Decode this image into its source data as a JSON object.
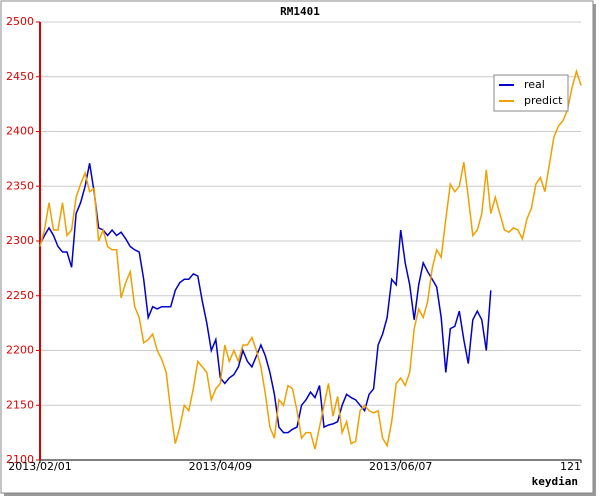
{
  "chart_data": {
    "type": "line",
    "title": "RM1401",
    "x_label": "keydian",
    "x": [
      1,
      2,
      3,
      4,
      5,
      6,
      7,
      8,
      9,
      10,
      11,
      12,
      13,
      14,
      15,
      16,
      17,
      18,
      19,
      20,
      21,
      22,
      23,
      24,
      25,
      26,
      27,
      28,
      29,
      30,
      31,
      32,
      33,
      34,
      35,
      36,
      37,
      38,
      39,
      40,
      41,
      42,
      43,
      44,
      45,
      46,
      47,
      48,
      49,
      50,
      51,
      52,
      53,
      54,
      55,
      56,
      57,
      58,
      59,
      60,
      61,
      62,
      63,
      64,
      65,
      66,
      67,
      68,
      69,
      70,
      71,
      72,
      73,
      74,
      75,
      76,
      77,
      78,
      79,
      80,
      81,
      82,
      83,
      84,
      85,
      86,
      87,
      88,
      89,
      90,
      91,
      92,
      93,
      94,
      95,
      96,
      97,
      98,
      99,
      100,
      101,
      102,
      103,
      104,
      105,
      106,
      107,
      108,
      109,
      110,
      111,
      112,
      113,
      114,
      115,
      116,
      117,
      118,
      119,
      120,
      121
    ],
    "series": [
      {
        "name": "real",
        "color": "#0000cc",
        "values": [
          2297,
          2305,
          2312,
          2305,
          2295,
          2290,
          2290,
          2276,
          2325,
          2335,
          2350,
          2371,
          2345,
          2312,
          2310,
          2305,
          2310,
          2305,
          2308,
          2302,
          2295,
          2292,
          2290,
          2265,
          2230,
          2240,
          2238,
          2240,
          2240,
          2240,
          2255,
          2262,
          2265,
          2265,
          2270,
          2268,
          2245,
          2225,
          2200,
          2210,
          2175,
          2170,
          2175,
          2178,
          2185,
          2200,
          2190,
          2185,
          2195,
          2205,
          2195,
          2180,
          2160,
          2130,
          2125,
          2125,
          2128,
          2130,
          2150,
          2155,
          2162,
          2157,
          2168,
          2130,
          2132,
          2133,
          2135,
          2150,
          2160,
          2157,
          2155,
          2150,
          2145,
          2160,
          2165,
          2205,
          2215,
          2230,
          2265,
          2260,
          2310,
          2280,
          2260,
          2228,
          2260,
          2280,
          2272,
          2265,
          2258,
          2230,
          2180,
          2220,
          2222,
          2236,
          2210,
          2188,
          2228,
          2236,
          2228,
          2200,
          2255,
          null,
          null,
          null,
          null,
          null,
          null,
          null,
          null,
          null,
          null,
          null,
          null,
          null,
          null,
          null,
          null,
          null,
          null,
          null,
          null
        ]
      },
      {
        "name": "predict",
        "color": "#f0a000",
        "values": [
          2295,
          2310,
          2335,
          2310,
          2310,
          2335,
          2305,
          2310,
          2340,
          2352,
          2362,
          2345,
          2348,
          2300,
          2310,
          2295,
          2292,
          2292,
          2248,
          2262,
          2272,
          2240,
          2230,
          2207,
          2210,
          2215,
          2200,
          2192,
          2180,
          2145,
          2115,
          2130,
          2150,
          2145,
          2165,
          2190,
          2185,
          2180,
          2155,
          2165,
          2170,
          2205,
          2190,
          2200,
          2190,
          2205,
          2205,
          2212,
          2200,
          2185,
          2160,
          2130,
          2120,
          2155,
          2150,
          2168,
          2165,
          2145,
          2120,
          2125,
          2125,
          2110,
          2130,
          2150,
          2170,
          2140,
          2158,
          2125,
          2135,
          2115,
          2117,
          2145,
          2150,
          2145,
          2143,
          2145,
          2120,
          2113,
          2135,
          2170,
          2175,
          2168,
          2180,
          2220,
          2238,
          2230,
          2245,
          2275,
          2292,
          2285,
          2320,
          2352,
          2345,
          2350,
          2372,
          2340,
          2305,
          2310,
          2325,
          2365,
          2325,
          2340,
          2325,
          2310,
          2308,
          2312,
          2310,
          2302,
          2320,
          2330,
          2352,
          2358,
          2345,
          2370,
          2395,
          2405,
          2410,
          2420,
          2440,
          2455,
          2442
        ]
      }
    ],
    "xlim": [
      1,
      121
    ],
    "xticks": [
      {
        "value": 1,
        "label": "2013/02/01"
      },
      {
        "value": 41,
        "label": "2013/04/09"
      },
      {
        "value": 81,
        "label": "2013/06/07"
      },
      121
    ],
    "ylim": [
      2100,
      2500
    ],
    "yticks": [
      2100,
      2150,
      2200,
      2250,
      2300,
      2350,
      2400,
      2450,
      2500
    ],
    "grid": true,
    "legend": "upper right"
  }
}
